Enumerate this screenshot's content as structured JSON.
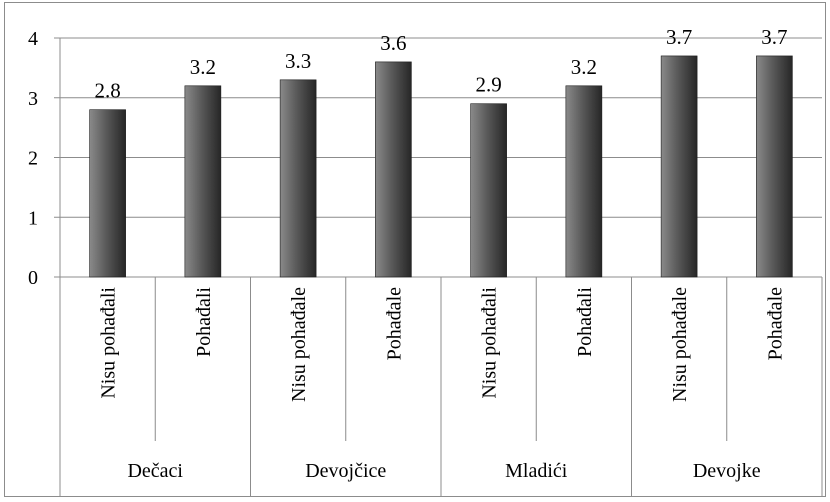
{
  "chart_data": {
    "type": "bar",
    "title": "",
    "xlabel": "",
    "ylabel": "",
    "ylim": [
      0,
      4
    ],
    "yticks": [
      "0",
      "1",
      "2",
      "3",
      "4"
    ],
    "grid": true,
    "legend": "none",
    "groups": [
      {
        "label": "Dečaci",
        "categories": [
          "Nisu pohađali",
          "Pohađali"
        ]
      },
      {
        "label": "Devojčice",
        "categories": [
          "Nisu pohađale",
          "Pohađale"
        ]
      },
      {
        "label": "Mladići",
        "categories": [
          "Nisu pohađali",
          "Pohađali"
        ]
      },
      {
        "label": "Devojke",
        "categories": [
          "Nisu pohađale",
          "Pohađale"
        ]
      }
    ],
    "categories": [
      "Nisu pohađali",
      "Pohađali",
      "Nisu pohađale",
      "Pohađale",
      "Nisu pohađali",
      "Pohađali",
      "Nisu pohađale",
      "Pohađale"
    ],
    "values": [
      2.8,
      3.2,
      3.3,
      3.6,
      2.9,
      3.2,
      3.7,
      3.7
    ],
    "value_labels": [
      "2.8",
      "3.2",
      "3.3",
      "3.6",
      "2.9",
      "3.2",
      "3.7",
      "3.7"
    ],
    "colors": {
      "bar_light": "#8a8a8a",
      "bar_mid": "#5a5a5a",
      "bar_dark": "#262626",
      "gridline": "#8c8c8c"
    }
  }
}
